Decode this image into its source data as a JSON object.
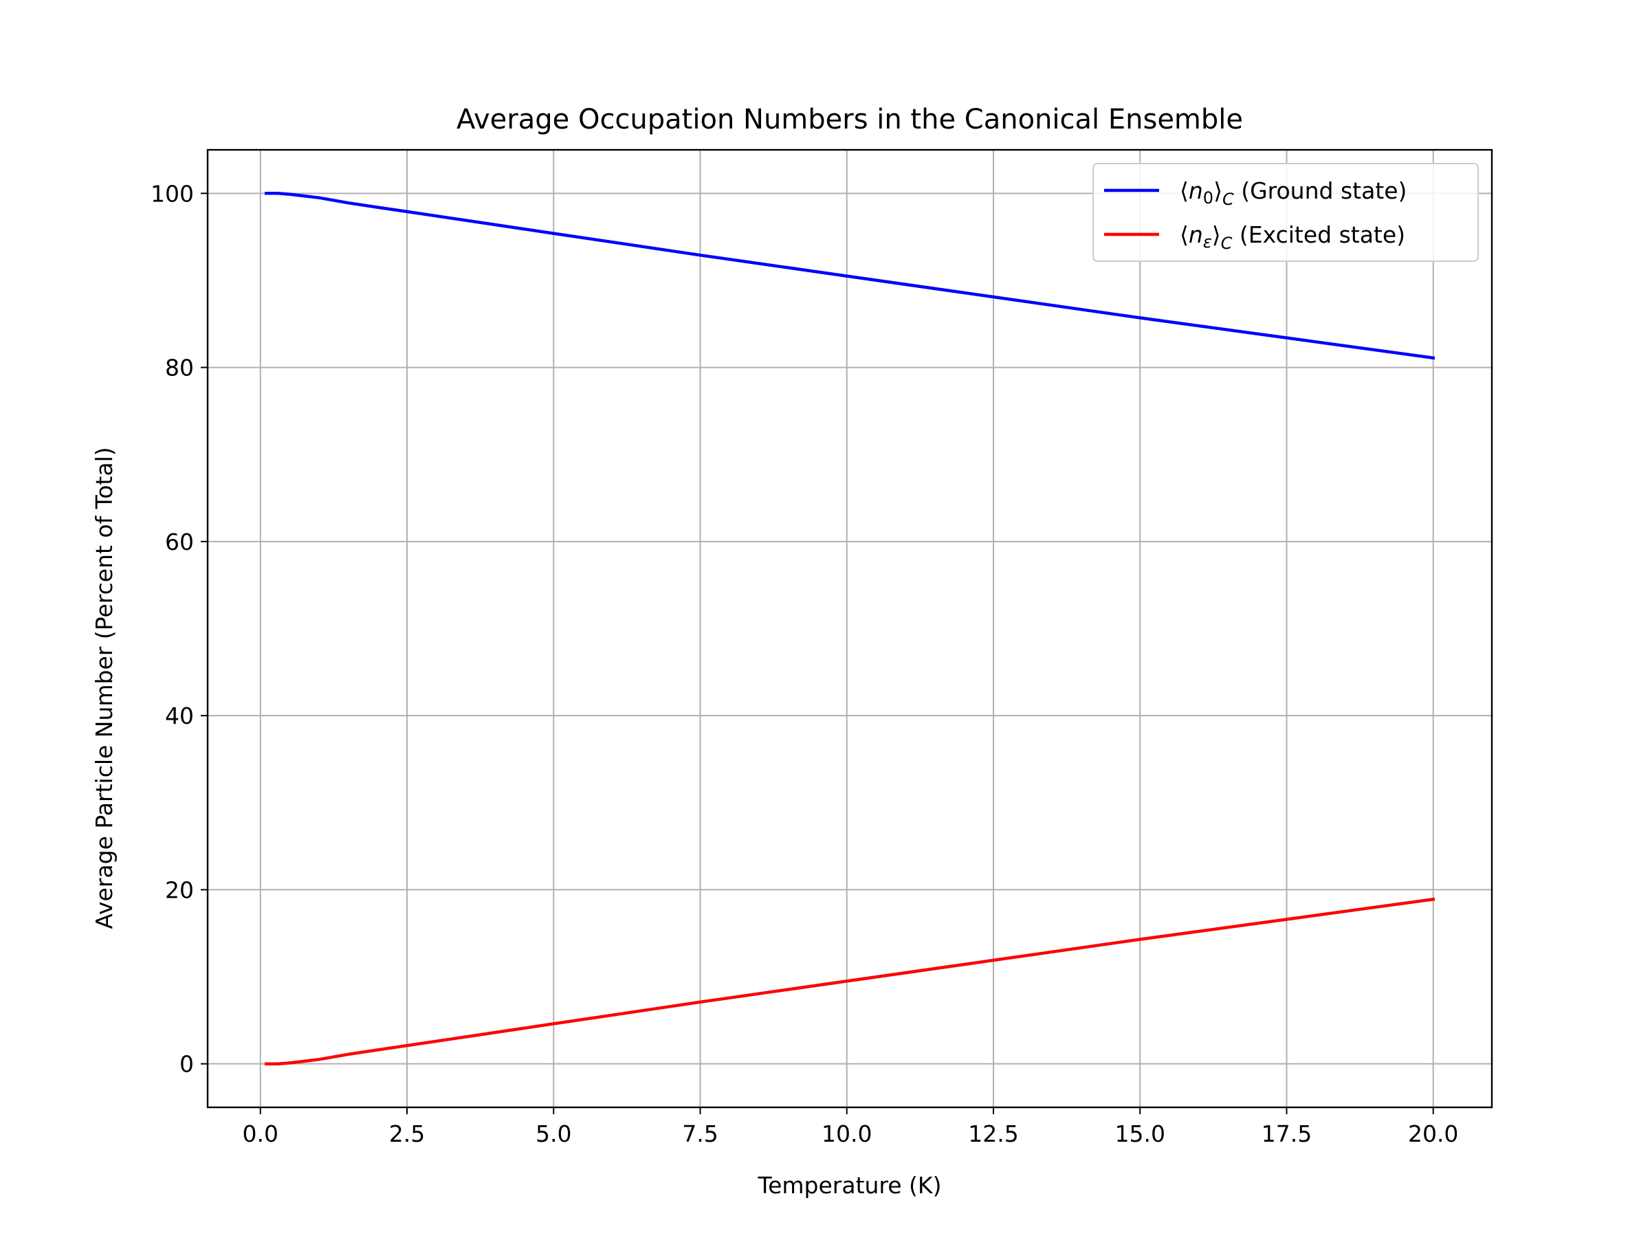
{
  "chart_data": {
    "type": "line",
    "title": "Average Occupation Numbers in the Canonical Ensemble",
    "xlabel": "Temperature (K)",
    "ylabel": "Average Particle Number (Percent of Total)",
    "xlim": [
      -0.9,
      21.0
    ],
    "ylim": [
      -5.0,
      105.0
    ],
    "xticks": [
      0.0,
      2.5,
      5.0,
      7.5,
      10.0,
      12.5,
      15.0,
      17.5,
      20.0
    ],
    "xtick_labels": [
      "0.0",
      "2.5",
      "5.0",
      "7.5",
      "10.0",
      "12.5",
      "15.0",
      "17.5",
      "20.0"
    ],
    "yticks": [
      0,
      20,
      40,
      60,
      80,
      100
    ],
    "ytick_labels": [
      "0",
      "20",
      "40",
      "60",
      "80",
      "100"
    ],
    "grid": true,
    "legend_position": "top-right",
    "series": [
      {
        "name": "⟨n₀⟩_C (Ground state)",
        "legend_parts": [
          "⟨",
          "n",
          "0",
          "⟩",
          "C",
          " (Ground state)"
        ],
        "color": "#0000ff",
        "x": [
          0.1,
          0.3,
          0.5,
          0.75,
          1.0,
          1.5,
          2.0,
          2.5,
          3.0,
          4.0,
          5.0,
          6.0,
          7.5,
          10.0,
          12.5,
          15.0,
          17.5,
          20.0
        ],
        "y": [
          100.0,
          100.0,
          99.9,
          99.7,
          99.5,
          98.9,
          98.4,
          97.9,
          97.4,
          96.4,
          95.4,
          94.4,
          92.9,
          90.5,
          88.1,
          85.7,
          83.4,
          81.1
        ]
      },
      {
        "name": "⟨n_ε⟩_C (Excited state)",
        "legend_parts": [
          "⟨",
          "n",
          "ε",
          "⟩",
          "C",
          " (Excited state)"
        ],
        "color": "#ff0000",
        "x": [
          0.1,
          0.3,
          0.5,
          0.75,
          1.0,
          1.5,
          2.0,
          2.5,
          3.0,
          4.0,
          5.0,
          6.0,
          7.5,
          10.0,
          12.5,
          15.0,
          17.5,
          20.0
        ],
        "y": [
          0.0,
          0.0,
          0.1,
          0.3,
          0.5,
          1.1,
          1.6,
          2.1,
          2.6,
          3.6,
          4.6,
          5.6,
          7.1,
          9.5,
          11.9,
          14.3,
          16.6,
          18.9
        ]
      }
    ]
  }
}
